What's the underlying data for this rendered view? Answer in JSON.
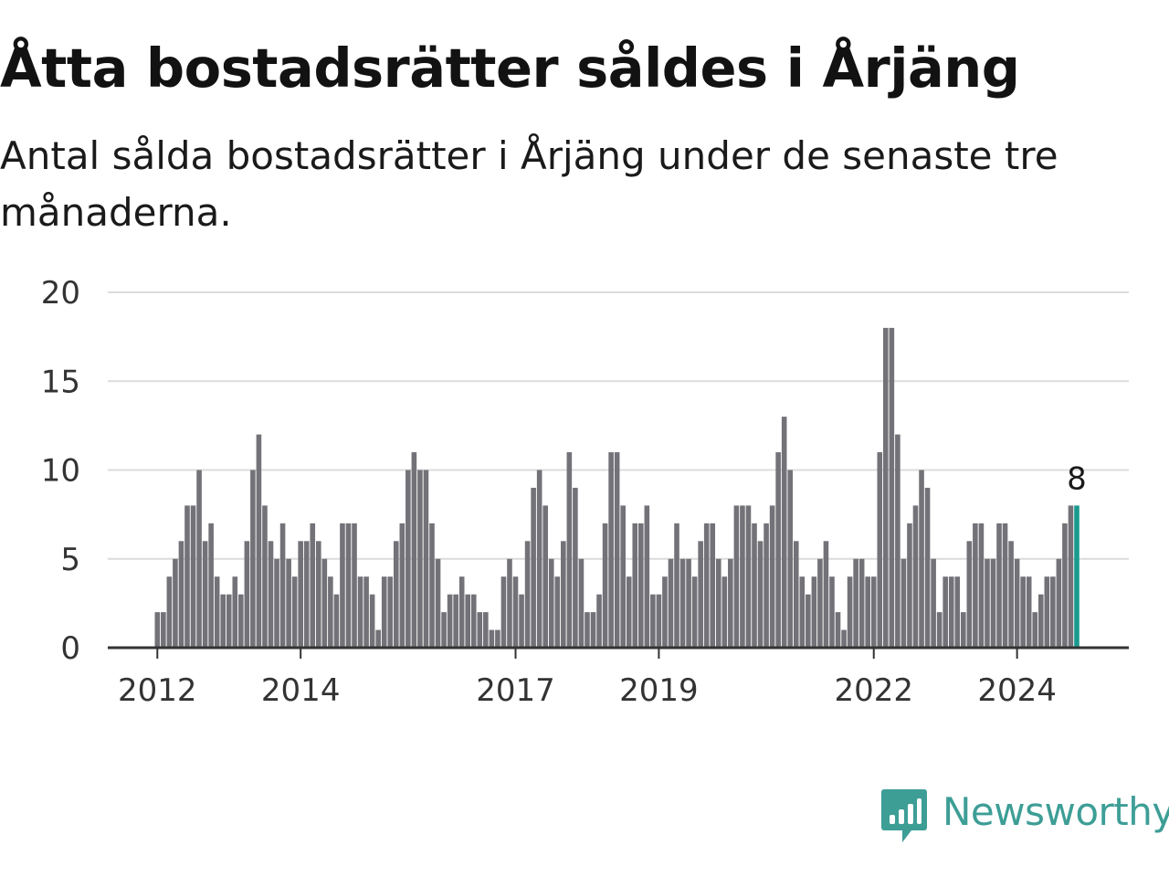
{
  "title": "Åtta bostadsrätter såldes i Årjäng",
  "subtitle": "Antal sålda bostadsrätter i Årjäng under de senaste tre månaderna.",
  "brand": {
    "name": "Newsworthy",
    "color": "#3d9e96",
    "icon": "bar-chart-speech-bubble-icon"
  },
  "chart_data": {
    "type": "bar",
    "frequency": "monthly",
    "start": "2012-01",
    "ylim": [
      0,
      20
    ],
    "yticks": [
      0,
      5,
      10,
      15,
      20
    ],
    "xticks": [
      {
        "label": "2012",
        "index": 0
      },
      {
        "label": "2014",
        "index": 24
      },
      {
        "label": "2017",
        "index": 60
      },
      {
        "label": "2019",
        "index": 84
      },
      {
        "label": "2022",
        "index": 120
      },
      {
        "label": "2024",
        "index": 144
      }
    ],
    "bar_color": "#737278",
    "highlight_color": "#1a9a8e",
    "highlight_last": true,
    "last_label": "8",
    "grid": true,
    "values": [
      2,
      2,
      4,
      5,
      6,
      8,
      8,
      10,
      6,
      7,
      4,
      3,
      3,
      4,
      3,
      6,
      10,
      12,
      8,
      6,
      5,
      7,
      5,
      4,
      6,
      6,
      7,
      6,
      5,
      4,
      3,
      7,
      7,
      7,
      4,
      4,
      3,
      1,
      4,
      4,
      6,
      7,
      10,
      11,
      10,
      10,
      7,
      5,
      2,
      3,
      3,
      4,
      3,
      3,
      2,
      2,
      1,
      1,
      4,
      5,
      4,
      3,
      6,
      9,
      10,
      8,
      5,
      4,
      6,
      11,
      9,
      5,
      2,
      2,
      3,
      7,
      11,
      11,
      8,
      4,
      7,
      7,
      8,
      3,
      3,
      4,
      5,
      7,
      5,
      5,
      4,
      6,
      7,
      7,
      5,
      4,
      5,
      8,
      8,
      8,
      7,
      6,
      7,
      8,
      11,
      13,
      10,
      6,
      4,
      3,
      4,
      5,
      6,
      4,
      2,
      1,
      4,
      5,
      5,
      4,
      4,
      11,
      18,
      18,
      12,
      5,
      7,
      8,
      10,
      9,
      5,
      2,
      4,
      4,
      4,
      2,
      6,
      7,
      7,
      5,
      5,
      7,
      7,
      6,
      5,
      4,
      4,
      2,
      3,
      4,
      4,
      5,
      7,
      8,
      8
    ]
  }
}
